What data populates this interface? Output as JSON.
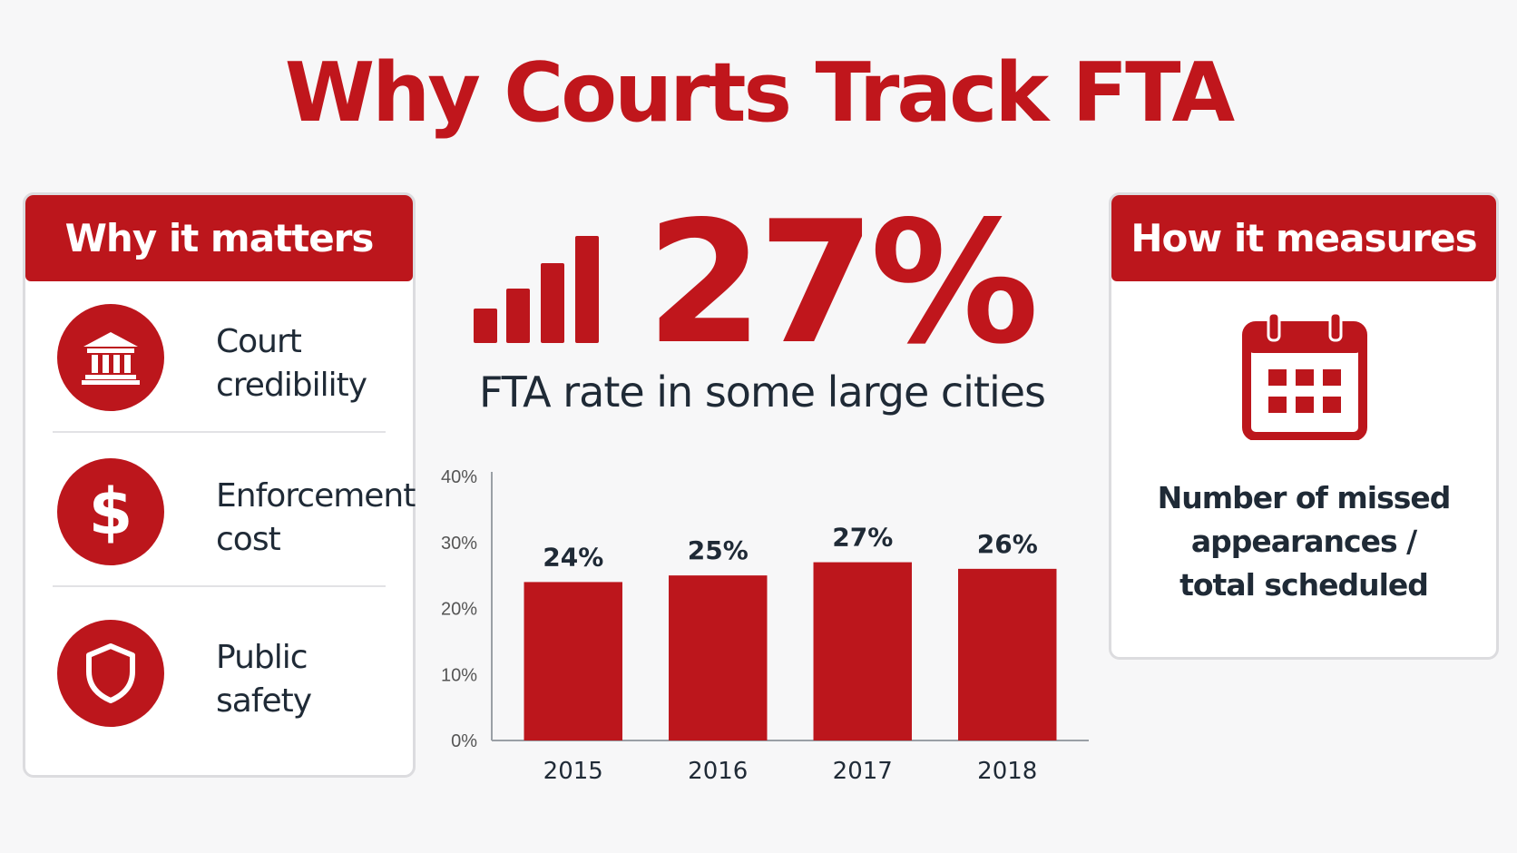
{
  "title": "Why Courts Track FTA",
  "colors": {
    "accent": "#bc161c",
    "text": "#1f2a36"
  },
  "left_card": {
    "header": "Why it matters",
    "items": [
      {
        "icon": "courthouse-icon",
        "line1": "Court",
        "line2": "credibility"
      },
      {
        "icon": "dollar-icon",
        "line1": "Enforcement",
        "line2": "cost"
      },
      {
        "icon": "shield-icon",
        "line1": "Public",
        "line2": "safety"
      }
    ]
  },
  "stat": {
    "icon": "bar-chart-icon",
    "value": "27%",
    "caption": "FTA rate in some large cities"
  },
  "right_card": {
    "header": "How it measures",
    "icon": "calendar-icon",
    "line1": "Number of missed",
    "line2": "appearances /",
    "line3": "total scheduled"
  },
  "chart_data": {
    "type": "bar",
    "categories": [
      "2015",
      "2016",
      "2017",
      "2018"
    ],
    "values": [
      24,
      25,
      27,
      26
    ],
    "value_labels": [
      "24%",
      "25%",
      "27%",
      "26%"
    ],
    "yticks": [
      "0%",
      "10%",
      "20%",
      "30%",
      "40%"
    ],
    "ylim": [
      0,
      40
    ],
    "color": "#bc161c",
    "grid": false
  }
}
